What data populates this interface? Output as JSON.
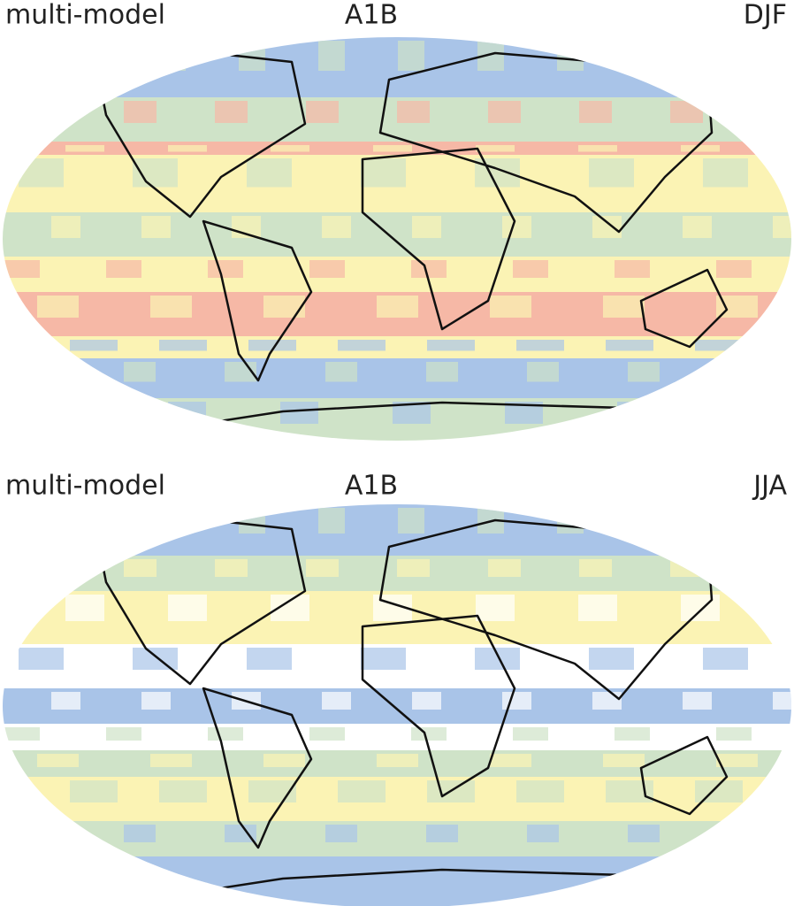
{
  "panels": [
    {
      "left": "multi-model",
      "center": "A1B",
      "right": "DJF"
    },
    {
      "left": "multi-model",
      "center": "A1B",
      "right": "JJA"
    }
  ]
}
